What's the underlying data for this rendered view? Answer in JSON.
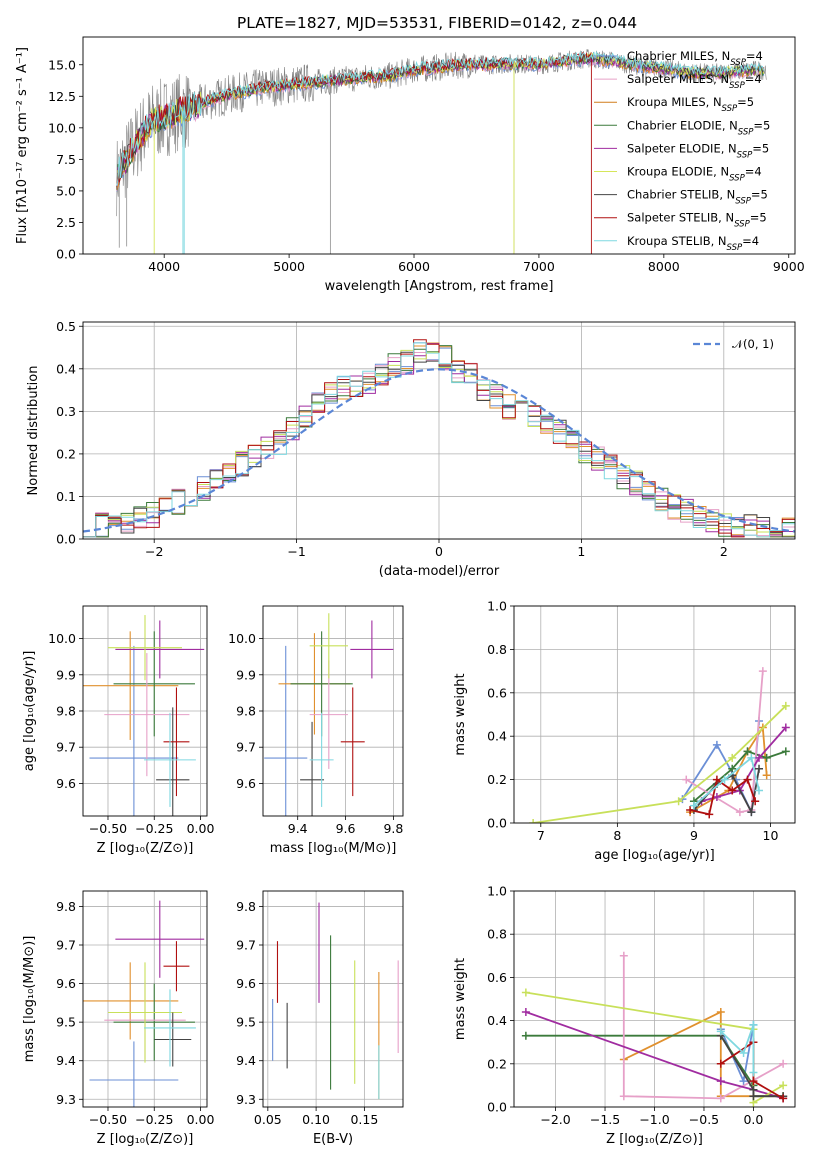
{
  "title": "PLATE=1827, MJD=53531, FIBERID=0142, z=0.044",
  "colors": [
    "#6b8fd6",
    "#e0902e",
    "#3b7a3b",
    "#e6a0c8",
    "#a02ca0",
    "#c8e05a",
    "#444444",
    "#b01010",
    "#7fd8e0"
  ],
  "spec_colors": [
    "#6b8fd6",
    "#e6a0c8",
    "#d17d1c",
    "#3b7a3b",
    "#a02ca0",
    "#d6e65a",
    "#444444",
    "#b01010",
    "#7fd8e0"
  ],
  "models": [
    {
      "name": "Chabrier MILES",
      "n": "4"
    },
    {
      "name": "Salpeter MILES",
      "n": "4"
    },
    {
      "name": "Kroupa MILES",
      "n": "5"
    },
    {
      "name": "Chabrier ELODIE",
      "n": "5"
    },
    {
      "name": "Salpeter ELODIE",
      "n": "5"
    },
    {
      "name": "Kroupa ELODIE",
      "n": "4"
    },
    {
      "name": "Chabrier STELIB",
      "n": "5"
    },
    {
      "name": "Salpeter STELIB",
      "n": "5"
    },
    {
      "name": "Kroupa STELIB",
      "n": "4"
    }
  ],
  "panel1": {
    "xlabel": "wavelength [Angstrom, rest frame]",
    "ylabel": "Flux [fλ10⁻¹⁷ erg cm⁻² s⁻¹ A⁻¹]",
    "xlim": [
      3350,
      9050
    ],
    "ylim": [
      0,
      17.2
    ],
    "xticks": [
      4000,
      5000,
      6000,
      7000,
      8000,
      9000
    ],
    "yticks": [
      0.0,
      2.5,
      5.0,
      7.5,
      10.0,
      12.5,
      15.0
    ],
    "continuum": [
      [
        3620,
        6.2
      ],
      [
        3700,
        7.5
      ],
      [
        3800,
        9.2
      ],
      [
        3900,
        10.5
      ],
      [
        4000,
        10.8
      ],
      [
        4100,
        11.2
      ],
      [
        4200,
        11.5
      ],
      [
        4400,
        12.3
      ],
      [
        4600,
        12.8
      ],
      [
        4800,
        13.2
      ],
      [
        5000,
        13.4
      ],
      [
        5200,
        13.6
      ],
      [
        5400,
        13.8
      ],
      [
        5600,
        14.0
      ],
      [
        5800,
        14.1
      ],
      [
        6000,
        14.6
      ],
      [
        6200,
        14.8
      ],
      [
        6400,
        15.0
      ],
      [
        6600,
        15.0
      ],
      [
        6800,
        15.1
      ],
      [
        7000,
        15.0
      ],
      [
        7200,
        15.3
      ],
      [
        7400,
        15.5
      ],
      [
        7600,
        15.3
      ],
      [
        7800,
        14.9
      ],
      [
        8000,
        14.7
      ],
      [
        8200,
        14.4
      ],
      [
        8400,
        14.3
      ],
      [
        8600,
        14.5
      ],
      [
        8800,
        14.6
      ]
    ]
  },
  "chart_data": [
    {
      "type": "line",
      "title": "PLATE=1827, MJD=53531, FIBERID=0142, z=0.044",
      "xlabel": "wavelength [Angstrom, rest frame]",
      "ylabel": "Flux [fλ10⁻¹⁷ erg cm⁻² s⁻¹ A⁻¹]",
      "xlim": [
        3350,
        9050
      ],
      "ylim": [
        0,
        17.2
      ],
      "legend": "top-right"
    },
    {
      "type": "line",
      "xlabel": "(data-model)/error",
      "ylabel": "Normed distribution",
      "xlim": [
        -2.5,
        2.5
      ],
      "ylim": [
        0,
        0.51
      ],
      "xticks": [
        -2,
        -1,
        0,
        1,
        2
      ],
      "yticks": [
        0.0,
        0.1,
        0.2,
        0.3,
        0.4,
        0.5
      ],
      "reference_label": "𝒩(0, 1)",
      "hist_base": [
        0.028,
        0.032,
        0.036,
        0.04,
        0.046,
        0.056,
        0.07,
        0.088,
        0.104,
        0.118,
        0.14,
        0.158,
        0.178,
        0.196,
        0.21,
        0.228,
        0.258,
        0.29,
        0.32,
        0.345,
        0.355,
        0.36,
        0.365,
        0.39,
        0.41,
        0.415,
        0.44,
        0.435,
        0.425,
        0.395,
        0.385,
        0.355,
        0.335,
        0.31,
        0.3,
        0.285,
        0.27,
        0.25,
        0.23,
        0.206,
        0.19,
        0.168,
        0.148,
        0.13,
        0.11,
        0.092,
        0.076,
        0.064,
        0.052,
        0.044,
        0.036,
        0.032,
        0.028,
        0.024,
        0.022,
        0.02
      ],
      "legend": "top-right"
    },
    {
      "type": "scatter",
      "xlabel": "Z [log₁₀(Z/Z⊙)]",
      "ylabel": "age  [log₁₀(age/yr)]",
      "xlim": [
        -0.635,
        0.035
      ],
      "ylim": [
        9.51,
        10.09
      ],
      "xticks": [
        -0.5,
        -0.25,
        0.0
      ],
      "xticklabels": [
        "−0.50",
        "−0.25",
        "0.00"
      ],
      "yticks": [
        9.6,
        9.7,
        9.8,
        9.9,
        10.0
      ],
      "yticklabels": [
        "9.6",
        "9.7",
        "9.8",
        "9.9",
        "10.0"
      ],
      "points": [
        {
          "x": -0.36,
          "y": 9.67,
          "xe": 0.24,
          "ye": 0.31
        },
        {
          "x": -0.38,
          "y": 9.87,
          "xe": 0.26,
          "ye": 0.15
        },
        {
          "x": -0.25,
          "y": 9.875,
          "xe": 0.22,
          "ye": 0.145
        },
        {
          "x": -0.29,
          "y": 9.79,
          "xe": 0.23,
          "ye": 0.17
        },
        {
          "x": -0.22,
          "y": 9.97,
          "xe": 0.24,
          "ye": 0.08
        },
        {
          "x": -0.3,
          "y": 9.975,
          "xe": 0.2,
          "ye": 0.09
        },
        {
          "x": -0.15,
          "y": 9.61,
          "xe": 0.09,
          "ye": 0.2
        },
        {
          "x": -0.13,
          "y": 9.715,
          "xe": 0.07,
          "ye": 0.15
        },
        {
          "x": -0.165,
          "y": 9.665,
          "xe": 0.14,
          "ye": 0.13
        }
      ]
    },
    {
      "type": "scatter",
      "xlabel": "mass [log₁₀(M/M⊙)]",
      "xlim": [
        9.255,
        9.84
      ],
      "ylim": [
        9.51,
        10.09
      ],
      "xticks": [
        9.4,
        9.6,
        9.8
      ],
      "xticklabels": [
        "9.4",
        "9.6",
        "9.8"
      ],
      "yticks": [
        9.6,
        9.7,
        9.8,
        9.9,
        10.0
      ],
      "yticklabels": [
        "9.6",
        "9.7",
        "9.8",
        "9.9",
        "10.0"
      ],
      "points": [
        {
          "x": 9.35,
          "y": 9.67,
          "xe": 0.09,
          "ye": 0.31
        },
        {
          "x": 9.47,
          "y": 9.875,
          "xe": 0.15,
          "ye": 0.14
        },
        {
          "x": 9.5,
          "y": 9.875,
          "xe": 0.13,
          "ye": 0.145
        },
        {
          "x": 9.53,
          "y": 9.79,
          "xe": 0.08,
          "ye": 0.15
        },
        {
          "x": 9.71,
          "y": 9.97,
          "xe": 0.09,
          "ye": 0.08
        },
        {
          "x": 9.53,
          "y": 9.98,
          "xe": 0.08,
          "ye": 0.09
        },
        {
          "x": 9.46,
          "y": 9.61,
          "xe": 0.05,
          "ye": 0.16
        },
        {
          "x": 9.63,
          "y": 9.715,
          "xe": 0.05,
          "ye": 0.15
        },
        {
          "x": 9.5,
          "y": 9.665,
          "xe": 0.05,
          "ye": 0.13
        }
      ]
    },
    {
      "type": "line",
      "xlabel": "age  [log₁₀(age/yr)]",
      "ylabel": "mass weight",
      "xlim": [
        6.65,
        10.32
      ],
      "ylim": [
        0,
        1
      ],
      "xticks": [
        7,
        8,
        9,
        10
      ],
      "xticklabels": [
        "7",
        "8",
        "9",
        "10"
      ],
      "yticks": [
        0.0,
        0.2,
        0.4,
        0.6,
        0.8,
        1.0
      ],
      "yticklabels": [
        "0.0",
        "0.2",
        "0.4",
        "0.6",
        "0.8",
        "1.0"
      ],
      "series": [
        {
          "points": [
            [
              8.85,
              0.11
            ],
            [
              9.3,
              0.36
            ],
            [
              9.55,
              0.2
            ],
            [
              9.75,
              0.05
            ],
            [
              9.85,
              0.47
            ]
          ]
        },
        {
          "points": [
            [
              8.95,
              0.05
            ],
            [
              9.45,
              0.15
            ],
            [
              9.7,
              0.33
            ],
            [
              9.9,
              0.44
            ],
            [
              9.95,
              0.22
            ]
          ]
        },
        {
          "points": [
            [
              9.0,
              0.1
            ],
            [
              9.5,
              0.25
            ],
            [
              9.7,
              0.33
            ],
            [
              9.95,
              0.3
            ],
            [
              10.2,
              0.33
            ]
          ]
        },
        {
          "points": [
            [
              8.9,
              0.2
            ],
            [
              9.6,
              0.05
            ],
            [
              9.75,
              0.06
            ],
            [
              9.9,
              0.7
            ]
          ]
        },
        {
          "points": [
            [
              9.1,
              0.1
            ],
            [
              9.3,
              0.12
            ],
            [
              9.6,
              0.15
            ],
            [
              9.85,
              0.3
            ],
            [
              10.2,
              0.44
            ]
          ]
        },
        {
          "points": [
            [
              6.9,
              0.0
            ],
            [
              8.8,
              0.1
            ],
            [
              9.5,
              0.3
            ],
            [
              10.2,
              0.54
            ]
          ]
        },
        {
          "points": [
            [
              9.0,
              0.06
            ],
            [
              9.3,
              0.18
            ],
            [
              9.5,
              0.22
            ],
            [
              9.75,
              0.05
            ],
            [
              9.85,
              0.25
            ]
          ]
        },
        {
          "points": [
            [
              8.95,
              0.06
            ],
            [
              9.2,
              0.04
            ],
            [
              9.3,
              0.2
            ],
            [
              9.5,
              0.15
            ],
            [
              9.7,
              0.2
            ],
            [
              9.8,
              0.1
            ]
          ]
        },
        {
          "points": [
            [
              9.0,
              0.08
            ],
            [
              9.4,
              0.2
            ],
            [
              9.75,
              0.3
            ],
            [
              9.85,
              0.15
            ]
          ]
        }
      ]
    },
    {
      "type": "scatter",
      "xlabel": "Z [log₁₀(Z/Z⊙)]",
      "ylabel": "mass [log₁₀(M/M⊙)]",
      "xlim": [
        -0.635,
        0.035
      ],
      "ylim": [
        9.28,
        9.84
      ],
      "xticks": [
        -0.5,
        -0.25,
        0.0
      ],
      "xticklabels": [
        "−0.50",
        "−0.25",
        "0.00"
      ],
      "yticks": [
        9.3,
        9.4,
        9.5,
        9.6,
        9.7,
        9.8
      ],
      "yticklabels": [
        "9.3",
        "9.4",
        "9.5",
        "9.6",
        "9.7",
        "9.8"
      ],
      "points": [
        {
          "x": -0.36,
          "y": 9.35,
          "xe": 0.24,
          "ye": 0.1
        },
        {
          "x": -0.38,
          "y": 9.555,
          "xe": 0.26,
          "ye": 0.1
        },
        {
          "x": -0.25,
          "y": 9.5,
          "xe": 0.22,
          "ye": 0.1
        },
        {
          "x": -0.3,
          "y": 9.505,
          "xe": 0.22,
          "ye": 0.1
        },
        {
          "x": -0.22,
          "y": 9.715,
          "xe": 0.24,
          "ye": 0.1
        },
        {
          "x": -0.3,
          "y": 9.525,
          "xe": 0.2,
          "ye": 0.13
        },
        {
          "x": -0.15,
          "y": 9.455,
          "xe": 0.1,
          "ye": 0.07
        },
        {
          "x": -0.13,
          "y": 9.645,
          "xe": 0.07,
          "ye": 0.065
        },
        {
          "x": -0.165,
          "y": 9.485,
          "xe": 0.14,
          "ye": 0.1
        }
      ]
    },
    {
      "type": "scatter",
      "xlabel": "E(B-V)",
      "xlim": [
        0.045,
        0.19
      ],
      "ylim": [
        9.28,
        9.84
      ],
      "xticks": [
        0.05,
        0.1,
        0.15
      ],
      "xticklabels": [
        "0.05",
        "0.10",
        "0.15"
      ],
      "yticks": [
        9.3,
        9.4,
        9.5,
        9.6,
        9.7,
        9.8
      ],
      "yticklabels": [
        "9.3",
        "9.4",
        "9.5",
        "9.6",
        "9.7",
        "9.8"
      ],
      "points": [
        {
          "x": 0.055,
          "y": 9.48,
          "ye": 0.08
        },
        {
          "x": 0.165,
          "y": 9.465,
          "ye": 0.165
        },
        {
          "x": 0.115,
          "y": 9.525,
          "ye": 0.2
        },
        {
          "x": 0.185,
          "y": 9.54,
          "ye": 0.12
        },
        {
          "x": 0.103,
          "y": 9.68,
          "ye": 0.13
        },
        {
          "x": 0.14,
          "y": 9.5,
          "ye": 0.16
        },
        {
          "x": 0.07,
          "y": 9.465,
          "ye": 0.085
        },
        {
          "x": 0.06,
          "y": 9.63,
          "ye": 0.08
        },
        {
          "x": 0.165,
          "y": 9.37,
          "ye": 0.07
        }
      ]
    },
    {
      "type": "line",
      "xlabel": "Z [log₁₀(Z/Z⊙)]",
      "ylabel": "mass weight",
      "xlim": [
        -2.42,
        0.42
      ],
      "ylim": [
        0,
        1
      ],
      "xticks": [
        -2.0,
        -1.5,
        -1.0,
        -0.5,
        0.0
      ],
      "xticklabels": [
        "−2.0",
        "−1.5",
        "−1.0",
        "−0.5",
        "0.0"
      ],
      "yticks": [
        0.0,
        0.2,
        0.4,
        0.6,
        0.8,
        1.0
      ],
      "yticklabels": [
        "0.0",
        "0.2",
        "0.4",
        "0.6",
        "0.8",
        "1.0"
      ],
      "series": [
        {
          "points": [
            [
              -0.33,
              0.36
            ],
            [
              -0.1,
              0.12
            ],
            [
              0.0,
              0.38
            ],
            [
              0.0,
              0.1
            ]
          ]
        },
        {
          "points": [
            [
              -1.31,
              0.22
            ],
            [
              -0.33,
              0.44
            ],
            [
              -0.33,
              0.05
            ],
            [
              0.3,
              0.05
            ]
          ]
        },
        {
          "points": [
            [
              -2.3,
              0.33
            ],
            [
              -0.33,
              0.33
            ],
            [
              0.0,
              0.1
            ],
            [
              0.0,
              0.05
            ],
            [
              0.3,
              0.05
            ]
          ]
        },
        {
          "points": [
            [
              -1.31,
              0.7
            ],
            [
              -1.31,
              0.05
            ],
            [
              -0.33,
              0.04
            ],
            [
              0.3,
              0.2
            ]
          ]
        },
        {
          "points": [
            [
              -2.3,
              0.44
            ],
            [
              -0.33,
              0.12
            ],
            [
              0.0,
              0.08
            ],
            [
              0.3,
              0.04
            ]
          ]
        },
        {
          "points": [
            [
              -2.3,
              0.53
            ],
            [
              0.0,
              0.36
            ],
            [
              0.0,
              0.02
            ],
            [
              0.3,
              0.1
            ]
          ]
        },
        {
          "points": [
            [
              -0.33,
              0.33
            ],
            [
              0.0,
              0.08
            ],
            [
              0.0,
              0.05
            ],
            [
              0.3,
              0.05
            ]
          ]
        },
        {
          "points": [
            [
              -0.33,
              0.2
            ],
            [
              0.0,
              0.3
            ],
            [
              0.0,
              0.12
            ],
            [
              0.3,
              0.04
            ]
          ]
        },
        {
          "points": [
            [
              -0.33,
              0.35
            ],
            [
              -0.1,
              0.25
            ],
            [
              0.0,
              0.38
            ],
            [
              0.0,
              0.16
            ]
          ]
        }
      ]
    }
  ]
}
